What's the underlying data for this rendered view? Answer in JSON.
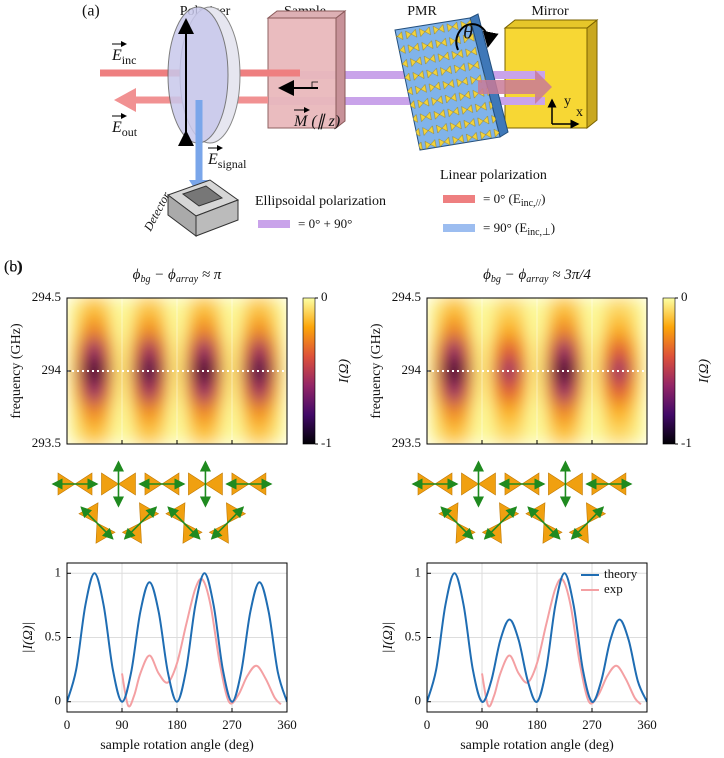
{
  "diagram": {
    "label": "(a)",
    "polarizer": "Polarizer",
    "sample": "Sample",
    "pmr": "PMR",
    "mirror": "Mirror",
    "theta": "θ",
    "detector": "Detector",
    "axis_y": "y",
    "axis_x": "x",
    "e_inc": [
      "E",
      "inc"
    ],
    "e_out": [
      "E",
      "out"
    ],
    "e_signal": [
      "E",
      "signal"
    ],
    "m": [
      "M",
      " (∥ z)"
    ],
    "legend": {
      "linear": "Linear polarization",
      "red": [
        "= 0° (E",
        "inc,//",
        ")"
      ],
      "blue": [
        "= 90° (E",
        "inc,⊥",
        ")"
      ],
      "ellipsoidal": "Ellipsoidal polarization",
      "purple": "= 0° + 90°"
    }
  },
  "chart_data": [
    {
      "type": "heatmap",
      "panel": "(b)",
      "title": [
        "ϕ",
        "bg",
        " − ϕ",
        "array",
        " ≈ π"
      ],
      "ylabel": "frequency (GHz)",
      "xlim": [
        0,
        360
      ],
      "xticks": [
        90,
        180,
        270
      ],
      "ylim": [
        293.5,
        294.5
      ],
      "yticks": [
        294.5,
        294,
        293.5
      ],
      "grid": true,
      "hline": 294,
      "z": [
        [
          -0.01,
          -0.08,
          -0.14,
          -0.14,
          -0.08,
          -0.01,
          -0.01,
          -0.07,
          -0.13,
          -0.13,
          -0.07,
          -0.01,
          -0.01,
          -0.08,
          -0.14,
          -0.14,
          -0.08,
          -0.01,
          -0.01,
          -0.07,
          -0.13,
          -0.13,
          -0.07,
          -0.01
        ],
        [
          -0.02,
          -0.15,
          -0.28,
          -0.28,
          -0.15,
          -0.02,
          -0.02,
          -0.14,
          -0.26,
          -0.26,
          -0.14,
          -0.02,
          -0.02,
          -0.15,
          -0.28,
          -0.28,
          -0.15,
          -0.02,
          -0.02,
          -0.14,
          -0.26,
          -0.26,
          -0.14,
          -0.02
        ],
        [
          -0.05,
          -0.33,
          -0.6,
          -0.6,
          -0.33,
          -0.05,
          -0.04,
          -0.31,
          -0.57,
          -0.57,
          -0.31,
          -0.04,
          -0.05,
          -0.33,
          -0.6,
          -0.6,
          -0.33,
          -0.05,
          -0.04,
          -0.31,
          -0.57,
          -0.57,
          -0.31,
          -0.04
        ],
        [
          -0.07,
          -0.5,
          -0.93,
          -0.93,
          -0.5,
          -0.07,
          -0.06,
          -0.47,
          -0.87,
          -0.87,
          -0.47,
          -0.06,
          -0.07,
          -0.5,
          -0.93,
          -0.93,
          -0.5,
          -0.07,
          -0.06,
          -0.47,
          -0.87,
          -0.87,
          -0.47,
          -0.06
        ],
        [
          -0.05,
          -0.33,
          -0.6,
          -0.6,
          -0.33,
          -0.05,
          -0.04,
          -0.31,
          -0.57,
          -0.57,
          -0.31,
          -0.04,
          -0.05,
          -0.33,
          -0.6,
          -0.6,
          -0.33,
          -0.05,
          -0.04,
          -0.31,
          -0.57,
          -0.57,
          -0.31,
          -0.04
        ],
        [
          -0.02,
          -0.15,
          -0.28,
          -0.28,
          -0.15,
          -0.02,
          -0.02,
          -0.14,
          -0.26,
          -0.26,
          -0.14,
          -0.02,
          -0.02,
          -0.15,
          -0.28,
          -0.28,
          -0.15,
          -0.02,
          -0.02,
          -0.14,
          -0.26,
          -0.26,
          -0.14,
          -0.02
        ],
        [
          -0.01,
          -0.08,
          -0.14,
          -0.14,
          -0.08,
          -0.01,
          -0.01,
          -0.07,
          -0.13,
          -0.13,
          -0.07,
          -0.01,
          -0.01,
          -0.08,
          -0.14,
          -0.14,
          -0.08,
          -0.01,
          -0.01,
          -0.07,
          -0.13,
          -0.13,
          -0.07,
          -0.01
        ]
      ],
      "colorbar": {
        "label": "I(Ω)",
        "lim": [
          -1,
          0
        ],
        "ticks": [
          0,
          -1
        ],
        "colors": [
          "#000004",
          "#420a68",
          "#932667",
          "#dd513a",
          "#fca50a",
          "#fcffa4"
        ]
      }
    },
    {
      "type": "heatmap",
      "panel": "(c)",
      "title": [
        "ϕ",
        "bg",
        " − ϕ",
        "array",
        " ≈ 3π/4"
      ],
      "ylabel": "frequency (GHz)",
      "xlim": [
        0,
        360
      ],
      "xticks": [
        90,
        180,
        270
      ],
      "ylim": [
        293.5,
        294.5
      ],
      "yticks": [
        294.5,
        294,
        293.5
      ],
      "grid": true,
      "hline": 294,
      "z": [
        [
          -0.01,
          -0.08,
          -0.14,
          -0.14,
          -0.08,
          -0.01,
          -0.01,
          -0.05,
          -0.09,
          -0.09,
          -0.05,
          -0.01,
          -0.01,
          -0.08,
          -0.14,
          -0.14,
          -0.08,
          -0.01,
          -0.01,
          -0.05,
          -0.09,
          -0.09,
          -0.05,
          -0.01
        ],
        [
          -0.02,
          -0.15,
          -0.28,
          -0.28,
          -0.15,
          -0.02,
          -0.01,
          -0.1,
          -0.18,
          -0.18,
          -0.1,
          -0.01,
          -0.02,
          -0.15,
          -0.28,
          -0.28,
          -0.15,
          -0.02,
          -0.01,
          -0.1,
          -0.18,
          -0.18,
          -0.1,
          -0.01
        ],
        [
          -0.05,
          -0.33,
          -0.6,
          -0.6,
          -0.33,
          -0.05,
          -0.03,
          -0.21,
          -0.39,
          -0.39,
          -0.21,
          -0.03,
          -0.05,
          -0.33,
          -0.6,
          -0.6,
          -0.33,
          -0.05,
          -0.03,
          -0.21,
          -0.39,
          -0.39,
          -0.21,
          -0.03
        ],
        [
          -0.07,
          -0.5,
          -0.93,
          -0.93,
          -0.5,
          -0.07,
          -0.04,
          -0.32,
          -0.6,
          -0.6,
          -0.32,
          -0.04,
          -0.07,
          -0.5,
          -0.93,
          -0.93,
          -0.5,
          -0.07,
          -0.04,
          -0.32,
          -0.6,
          -0.6,
          -0.32,
          -0.04
        ],
        [
          -0.05,
          -0.33,
          -0.6,
          -0.6,
          -0.33,
          -0.05,
          -0.03,
          -0.21,
          -0.39,
          -0.39,
          -0.21,
          -0.03,
          -0.05,
          -0.33,
          -0.6,
          -0.6,
          -0.33,
          -0.05,
          -0.03,
          -0.21,
          -0.39,
          -0.39,
          -0.21,
          -0.03
        ],
        [
          -0.02,
          -0.15,
          -0.28,
          -0.28,
          -0.15,
          -0.02,
          -0.01,
          -0.1,
          -0.18,
          -0.18,
          -0.1,
          -0.01,
          -0.02,
          -0.15,
          -0.28,
          -0.28,
          -0.15,
          -0.02,
          -0.01,
          -0.1,
          -0.18,
          -0.18,
          -0.1,
          -0.01
        ],
        [
          -0.01,
          -0.08,
          -0.14,
          -0.14,
          -0.08,
          -0.01,
          -0.01,
          -0.05,
          -0.09,
          -0.09,
          -0.05,
          -0.01,
          -0.01,
          -0.08,
          -0.14,
          -0.14,
          -0.08,
          -0.01,
          -0.01,
          -0.05,
          -0.09,
          -0.09,
          -0.05,
          -0.01
        ]
      ],
      "colorbar": {
        "label": "I(Ω)",
        "lim": [
          -1,
          0
        ],
        "ticks": [
          0,
          -1
        ],
        "colors": [
          "#000004",
          "#420a68",
          "#932667",
          "#dd513a",
          "#fca50a",
          "#fcffa4"
        ]
      }
    },
    {
      "type": "line",
      "xlabel": "sample rotation angle (deg)",
      "ylabel": "|I(Ω)|",
      "xlim": [
        0,
        360
      ],
      "xticks": [
        0,
        90,
        180,
        270,
        360
      ],
      "ylim": [
        -0.08,
        1.08
      ],
      "yticks": [
        0,
        0.5,
        1
      ],
      "grid": true,
      "series": [
        {
          "color": "#1f6db3",
          "x": [
            0,
            15,
            30,
            45,
            60,
            75,
            90,
            105,
            120,
            135,
            150,
            165,
            180,
            195,
            210,
            225,
            240,
            255,
            270,
            285,
            300,
            315,
            330,
            345,
            360
          ],
          "values": [
            0,
            0.25,
            0.75,
            1,
            0.75,
            0.25,
            0,
            0.23,
            0.7,
            0.93,
            0.7,
            0.23,
            0,
            0.25,
            0.75,
            1,
            0.75,
            0.25,
            0,
            0.23,
            0.7,
            0.93,
            0.7,
            0.23,
            0
          ]
        },
        {
          "color": "#f4a0a3",
          "x": [
            90,
            100,
            110,
            120,
            135,
            150,
            165,
            180,
            195,
            210,
            222,
            235,
            250,
            265,
            280,
            295,
            310,
            325,
            340,
            350
          ],
          "values": [
            0.22,
            -0.03,
            0.05,
            0.22,
            0.36,
            0.22,
            0.15,
            0.3,
            0.6,
            0.88,
            0.95,
            0.75,
            0.3,
            0,
            0.05,
            0.2,
            0.28,
            0.18,
            0.03,
            -0.02
          ]
        }
      ]
    },
    {
      "type": "line",
      "xlabel": "sample rotation angle (deg)",
      "ylabel": "|I(Ω)|",
      "xlim": [
        0,
        360
      ],
      "xticks": [
        0,
        90,
        180,
        270,
        360
      ],
      "ylim": [
        -0.08,
        1.08
      ],
      "yticks": [
        0,
        0.5,
        1
      ],
      "grid": true,
      "legend": "upper right",
      "series": [
        {
          "name": "theory",
          "color": "#1f6db3",
          "x": [
            0,
            15,
            30,
            45,
            60,
            75,
            90,
            105,
            120,
            135,
            150,
            165,
            180,
            195,
            210,
            225,
            240,
            255,
            270,
            285,
            300,
            315,
            330,
            345,
            360
          ],
          "values": [
            0,
            0.25,
            0.75,
            1,
            0.75,
            0.25,
            0,
            0.16,
            0.48,
            0.64,
            0.48,
            0.16,
            0,
            0.25,
            0.75,
            1,
            0.75,
            0.25,
            0,
            0.16,
            0.48,
            0.64,
            0.48,
            0.16,
            0
          ]
        },
        {
          "name": "exp",
          "color": "#f4a0a3",
          "x": [
            90,
            100,
            110,
            120,
            135,
            150,
            165,
            180,
            195,
            210,
            222,
            235,
            250,
            265,
            280,
            295,
            310,
            325,
            340,
            350
          ],
          "values": [
            0.22,
            -0.03,
            0.05,
            0.22,
            0.36,
            0.22,
            0.15,
            0.3,
            0.6,
            0.88,
            0.95,
            0.75,
            0.3,
            0,
            0.05,
            0.2,
            0.28,
            0.18,
            0.03,
            -0.02
          ]
        }
      ]
    }
  ]
}
